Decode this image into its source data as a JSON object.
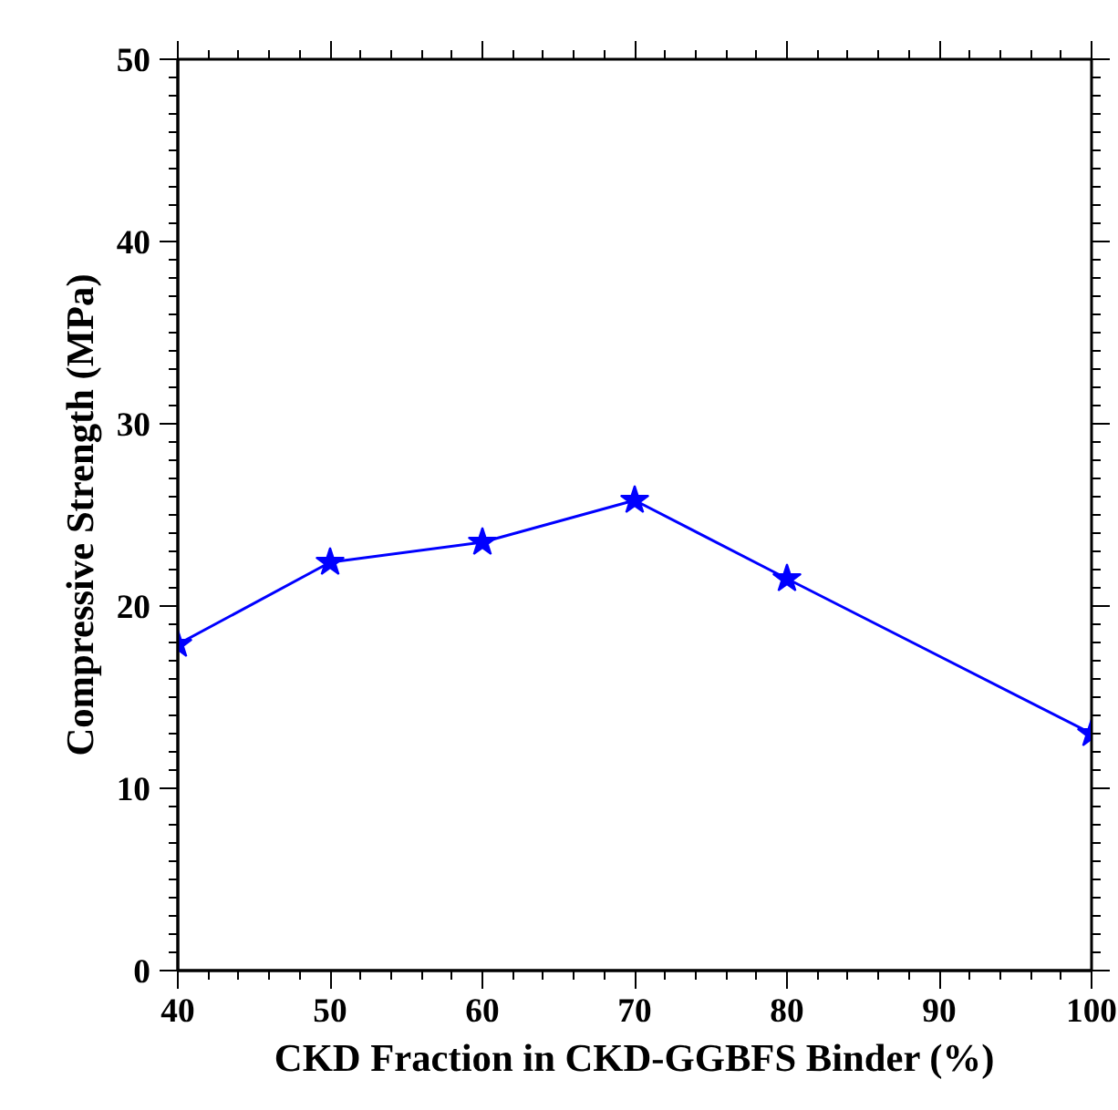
{
  "chart_data": {
    "type": "line",
    "xlabel": "CKD Fraction in CKD-GGBFS Binder (%)",
    "ylabel": "Compressive Strength (MPa)",
    "x": [
      40,
      50,
      60,
      70,
      80,
      100
    ],
    "series": [
      {
        "color": "#0000ff",
        "values": [
          17.9,
          22.4,
          23.5,
          25.8,
          21.5,
          13.0
        ]
      }
    ],
    "xlim": [
      40,
      100
    ],
    "ylim": [
      0,
      50
    ],
    "xticks": [
      40,
      50,
      60,
      70,
      80,
      90,
      100
    ],
    "yticks": [
      0,
      10,
      20,
      30,
      40,
      50
    ],
    "marker": "star",
    "line_style": "solid"
  }
}
